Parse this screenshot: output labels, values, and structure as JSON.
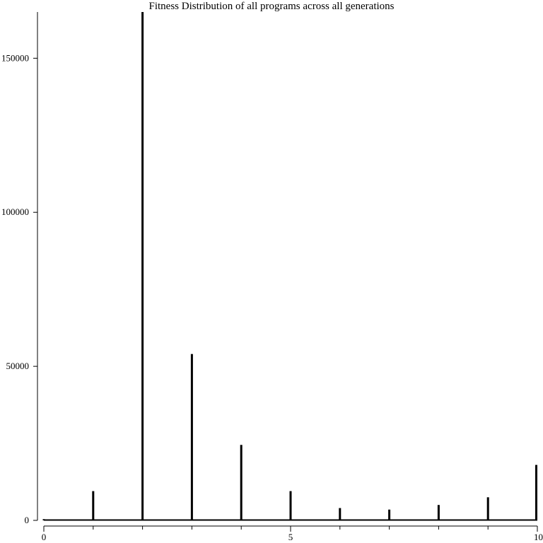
{
  "chart_data": {
    "type": "bar",
    "title": "Fitness Distribution of all programs across all generations",
    "xlabel": "",
    "ylabel": "",
    "x": [
      0,
      1,
      2,
      3,
      4,
      5,
      6,
      7,
      8,
      9,
      10
    ],
    "values": [
      400,
      9500,
      165000,
      54000,
      24500,
      9500,
      4000,
      3500,
      5000,
      7500,
      18000
    ],
    "xlim": [
      0,
      10
    ],
    "ylim": [
      0,
      165000
    ],
    "x_ticks": [
      0,
      5,
      10
    ],
    "y_ticks": [
      0,
      50000,
      100000,
      150000
    ],
    "x_minor_ticks": [
      1,
      2,
      3,
      4,
      6,
      7,
      8,
      9
    ],
    "grid": false,
    "bar_color": "#000000"
  }
}
